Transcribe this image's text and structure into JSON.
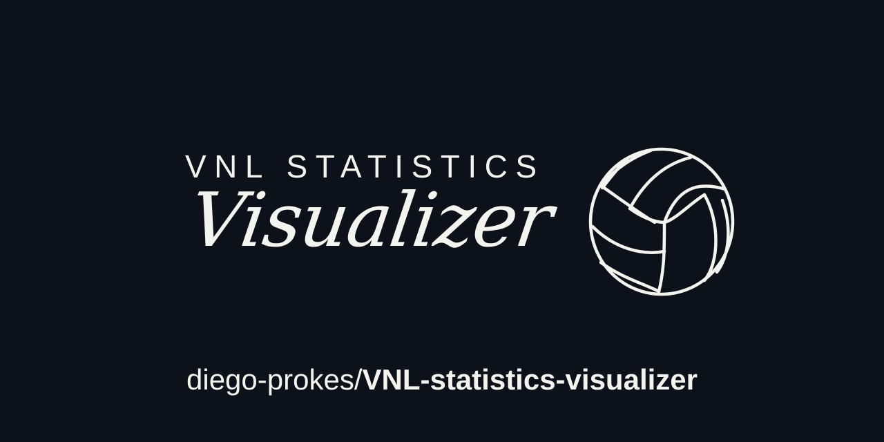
{
  "logo": {
    "heading": "VNL STATISTICS",
    "script_word": "Visualizer",
    "icon": "volleyball-icon"
  },
  "repo": {
    "owner": "diego-prokes",
    "separator": "/",
    "name": "VNL-statistics-visualizer"
  },
  "colors": {
    "background": "#0d111a",
    "foreground": "#f4f4ee"
  }
}
